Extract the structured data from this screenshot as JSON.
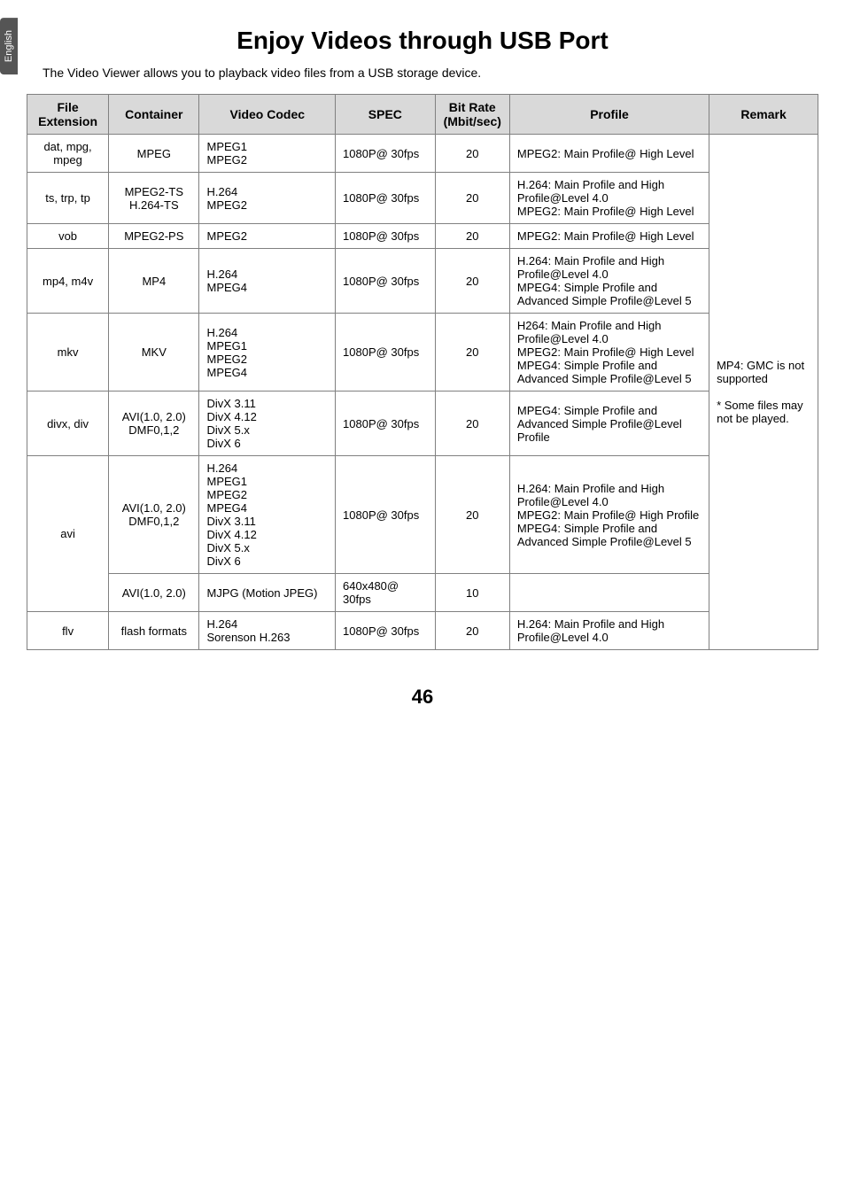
{
  "langTab": "English",
  "title": "Enjoy Videos through USB Port",
  "intro": "The Video Viewer allows you to playback video files from a USB storage device.",
  "pageNumber": "46",
  "table": {
    "headers": [
      "File Extension",
      "Container",
      "Video Codec",
      "SPEC",
      "Bit Rate (Mbit/sec)",
      "Profile",
      "Remark"
    ],
    "styling": {
      "headerBg": "#d9d9d9",
      "borderColor": "#808080",
      "fontSize": 13,
      "headerFontSize": 14
    },
    "colWidths": [
      "90px",
      "100px",
      "150px",
      "110px",
      "80px",
      "220px",
      "120px"
    ],
    "remarkText": "MP4: GMC is not supported\n\n* Some files may not be played.",
    "rows": [
      {
        "ext": "dat, mpg, mpeg",
        "cont": "MPEG",
        "codec": "MPEG1\nMPEG2",
        "spec": "1080P@ 30fps",
        "bit": "20",
        "profile": "MPEG2: Main Profile@ High Level"
      },
      {
        "ext": "ts, trp, tp",
        "cont": "MPEG2-TS\nH.264-TS",
        "codec": "H.264\nMPEG2",
        "spec": "1080P@ 30fps",
        "bit": "20",
        "profile": "H.264: Main Profile and High Profile@Level 4.0\nMPEG2: Main Profile@ High Level"
      },
      {
        "ext": "vob",
        "cont": "MPEG2-PS",
        "codec": "MPEG2",
        "spec": "1080P@ 30fps",
        "bit": "20",
        "profile": "MPEG2: Main Profile@ High Level"
      },
      {
        "ext": "mp4, m4v",
        "cont": "MP4",
        "codec": "H.264\nMPEG4",
        "spec": "1080P@ 30fps",
        "bit": "20",
        "profile": "H.264: Main Profile and High Profile@Level 4.0\nMPEG4: Simple Profile and Advanced Simple Profile@Level 5"
      },
      {
        "ext": "mkv",
        "cont": "MKV",
        "codec": "H.264\nMPEG1\nMPEG2\nMPEG4",
        "spec": "1080P@ 30fps",
        "bit": "20",
        "profile": "H264: Main Profile and High Profile@Level 4.0\nMPEG2: Main Profile@ High Level\nMPEG4: Simple Profile and Advanced Simple Profile@Level 5"
      },
      {
        "ext": "divx, div",
        "cont": "AVI(1.0, 2.0)\nDMF0,1,2",
        "codec": "DivX 3.11\nDivX 4.12\nDivX 5.x\nDivX 6",
        "spec": "1080P@ 30fps",
        "bit": "20",
        "profile": "MPEG4: Simple Profile and Advanced Simple Profile@Level Profile"
      },
      {
        "ext": "avi",
        "aviRows": [
          {
            "cont": "AVI(1.0, 2.0)\nDMF0,1,2",
            "codec": "H.264\nMPEG1\nMPEG2\nMPEG4\nDivX 3.11\nDivX 4.12\nDivX 5.x\nDivX 6",
            "spec": "1080P@ 30fps",
            "bit": "20",
            "profile": "H.264: Main Profile and High Profile@Level 4.0\nMPEG2: Main Profile@ High Profile\nMPEG4: Simple Profile and Advanced Simple Profile@Level 5"
          },
          {
            "cont": "AVI(1.0, 2.0)",
            "codec": "MJPG (Motion JPEG)",
            "spec": "640x480@ 30fps",
            "bit": "10",
            "profile": ""
          }
        ]
      },
      {
        "ext": "flv",
        "cont": "flash formats",
        "codec": "H.264\nSorenson H.263",
        "spec": "1080P@ 30fps",
        "bit": "20",
        "profile": "H.264: Main Profile and High Profile@Level 4.0"
      }
    ]
  }
}
